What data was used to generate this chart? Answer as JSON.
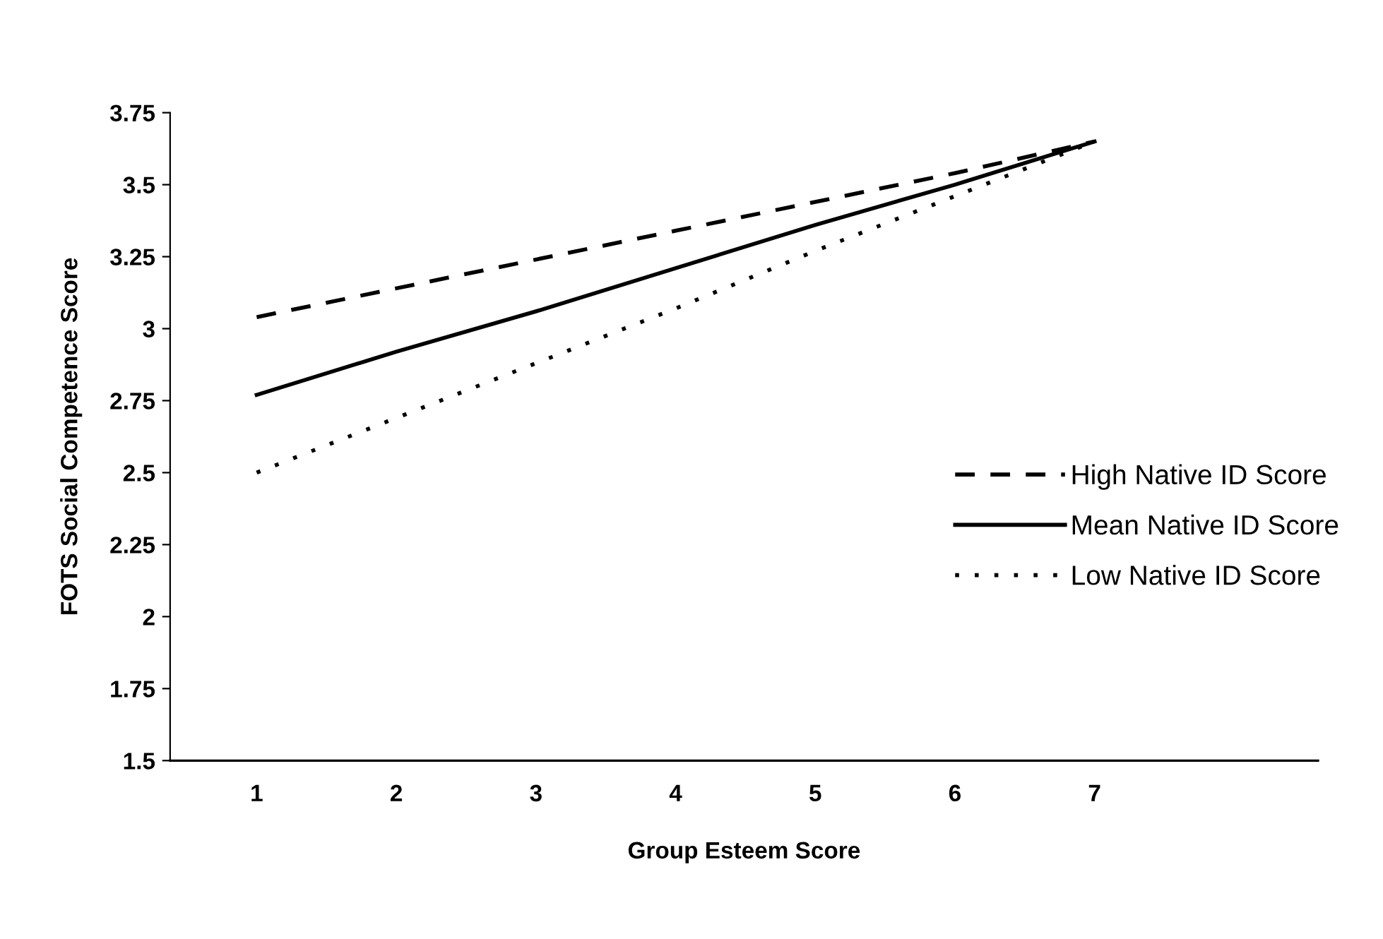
{
  "chart_data": {
    "type": "line",
    "xlabel": "Group Esteem Score",
    "ylabel": "FOTS Social Competence Score",
    "categories": [
      "1",
      "2",
      "3",
      "4",
      "5",
      "6",
      "7"
    ],
    "series": [
      {
        "name": "High Native ID Score",
        "color": "#000000",
        "line_style": "dashed",
        "values": [
          3.04,
          3.14,
          3.24,
          3.34,
          3.44,
          3.54,
          3.65
        ]
      },
      {
        "name": "Mean Native ID Score",
        "color": "#000000",
        "line_style": "solid",
        "values": [
          2.77,
          2.92,
          3.06,
          3.21,
          3.36,
          3.5,
          3.65
        ]
      },
      {
        "name": "Low Native ID Score",
        "color": "#000000",
        "line_style": "dotted",
        "values": [
          2.5,
          2.69,
          2.88,
          3.07,
          3.27,
          3.46,
          3.65
        ]
      }
    ],
    "ylim": [
      1.5,
      3.75
    ],
    "yticks": [
      1.5,
      1.75,
      2,
      2.25,
      2.5,
      2.75,
      3,
      3.25,
      3.5,
      3.75
    ],
    "grid": false,
    "legend": "right",
    "marker": "none"
  }
}
